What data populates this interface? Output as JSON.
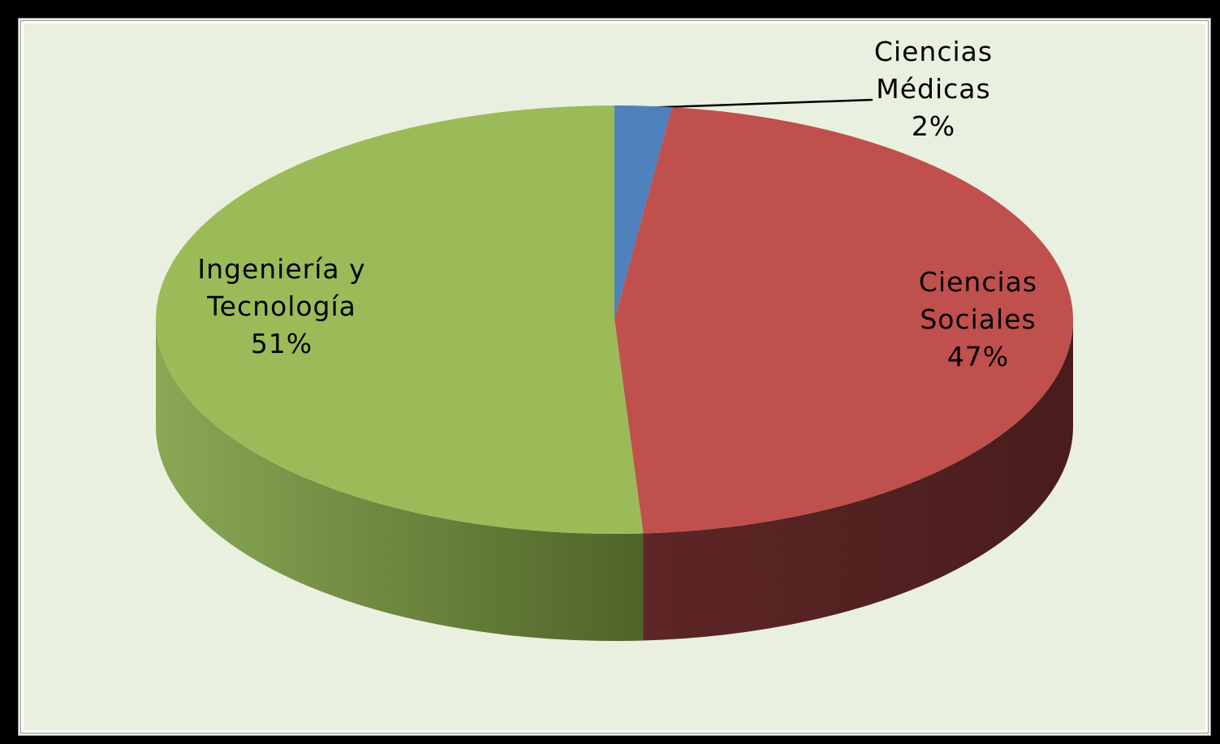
{
  "chart_data": {
    "type": "pie3d",
    "categories": [
      "Ciencias Médicas",
      "Ciencias Sociales",
      "Ingeniería y Tecnología"
    ],
    "values": [
      2,
      47,
      51
    ],
    "value_labels": [
      "2%",
      "47%",
      "51%"
    ],
    "colors": [
      "#4f81bd",
      "#c0504d",
      "#9bbb59"
    ]
  }
}
